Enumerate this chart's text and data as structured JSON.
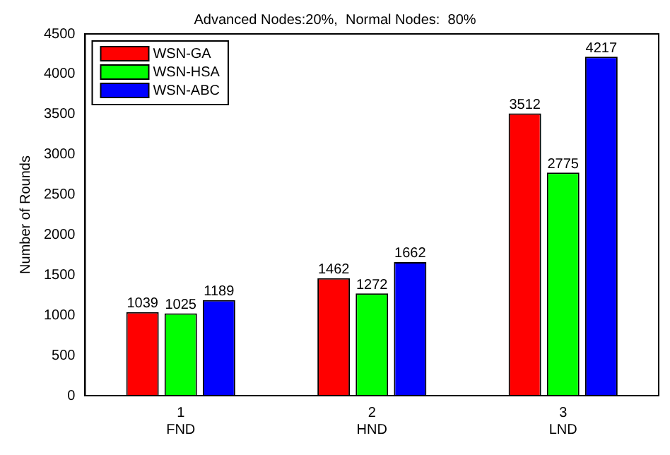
{
  "chart_data": {
    "type": "bar",
    "title": "Advanced Nodes:20%,  Normal Nodes:  80%",
    "ylabel": "Number of Rounds",
    "categories": [
      "1",
      "2",
      "3"
    ],
    "series": [
      {
        "name": "WSN-GA",
        "color": "#ff0000",
        "values": [
          1039,
          1462,
          3512
        ]
      },
      {
        "name": "WSN-HSA",
        "color": "#00ff00",
        "values": [
          1025,
          1272,
          2775
        ]
      },
      {
        "name": "WSN-ABC",
        "color": "#0000ff",
        "values": [
          1189,
          1662,
          4217
        ]
      }
    ],
    "ylim": [
      0,
      4500
    ],
    "yticks": [
      0,
      500,
      1000,
      1500,
      2000,
      2500,
      3000,
      3500,
      4000,
      4500
    ],
    "data_labels": true,
    "legend": "top left",
    "grid": false,
    "annotations": [
      "FND",
      "HND",
      "LND"
    ]
  }
}
